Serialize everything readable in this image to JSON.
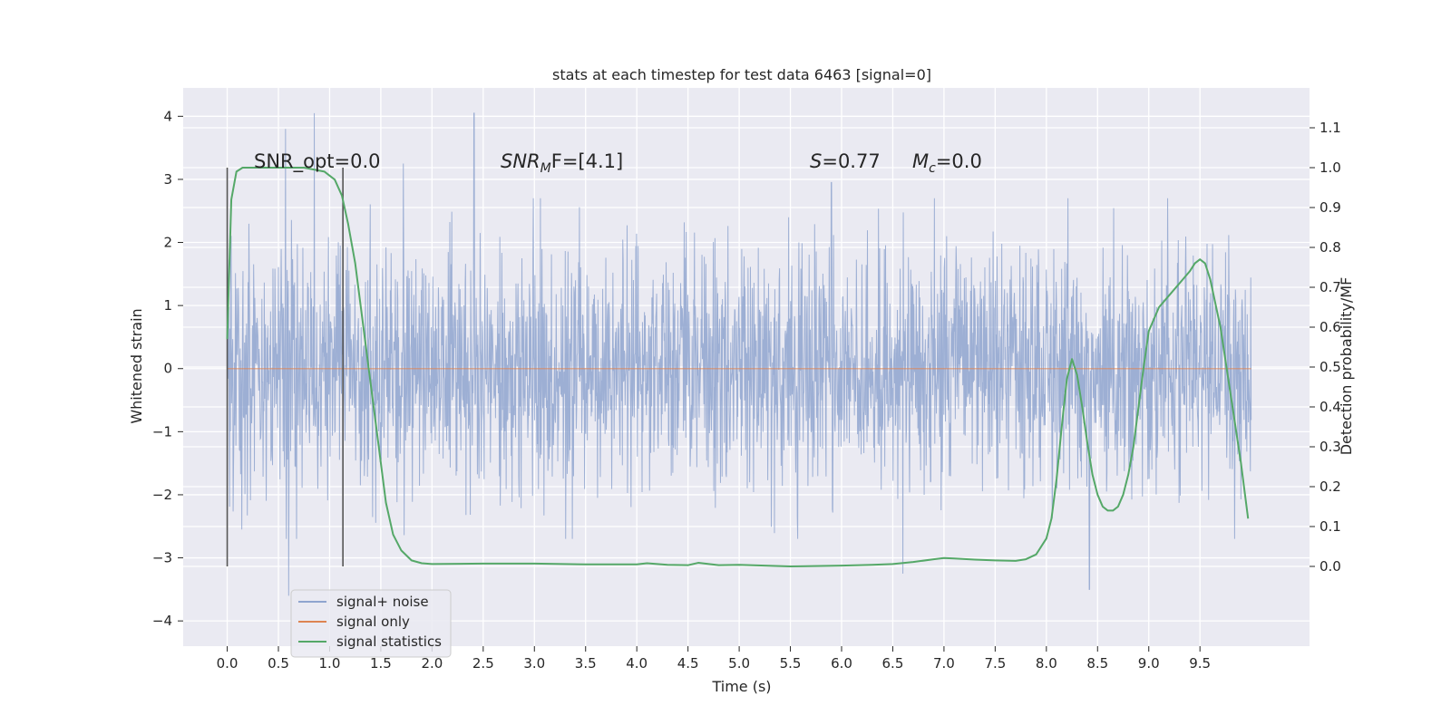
{
  "chart_data": {
    "type": "line",
    "title": "stats at each timestep for test data 6463 [signal=0]",
    "xlabel": "Time (s)",
    "ylabel_left": "Whitened strain",
    "ylabel_right": "Detection probability/MF",
    "xlim": [
      -0.43,
      10.57
    ],
    "ylim_left": [
      -4.4,
      4.45
    ],
    "ylim_right": [
      -0.2,
      1.2
    ],
    "x_ticks": [
      "0.0",
      "0.5",
      "1.0",
      "1.5",
      "2.0",
      "2.5",
      "3.0",
      "3.5",
      "4.0",
      "4.5",
      "5.0",
      "5.5",
      "6.0",
      "6.5",
      "7.0",
      "7.5",
      "8.0",
      "8.5",
      "9.0",
      "9.5"
    ],
    "y_ticks_left": [
      "−4",
      "−3",
      "−2",
      "−1",
      "0",
      "1",
      "2",
      "3",
      "4"
    ],
    "y_ticks_right": [
      "0.0",
      "0.1",
      "0.2",
      "0.3",
      "0.4",
      "0.5",
      "0.6",
      "0.7",
      "0.8",
      "0.9",
      "1.0",
      "1.1"
    ],
    "grid": true,
    "legend_position": "lower-left",
    "annotations": {
      "snr_opt": "SNR_opt=0.0",
      "snr_mf_label": "SNR",
      "snr_mf_sub": "M",
      "snr_mf_rest": "F=[4.1]",
      "s_label": "S",
      "s_value": "=0.77",
      "mc_label": "M",
      "mc_sub": "c",
      "mc_value": "=0.0"
    },
    "vertical_markers": [
      0.0,
      1.13
    ],
    "series": [
      {
        "name": "signal+ noise",
        "axis": "left",
        "color": "#8fa5cf",
        "style": "dense noise, approx. gaussian, range -3.6 to 4.05",
        "x_range": [
          0.0,
          10.0
        ],
        "notable_peaks": [
          [
            0.57,
            3.8
          ],
          [
            0.85,
            4.05
          ],
          [
            2.41,
            4.05
          ],
          [
            1.72,
            3.25
          ],
          [
            5.9,
            2.95
          ],
          [
            0.6,
            -3.6
          ],
          [
            8.42,
            -3.5
          ],
          [
            6.6,
            -3.25
          ]
        ]
      },
      {
        "name": "signal only",
        "axis": "left",
        "color": "#dd8452",
        "values_all_zero": true,
        "x_range": [
          0.0,
          10.0
        ]
      },
      {
        "name": "signal statistics",
        "axis": "right",
        "color": "#55a868",
        "x": [
          0.0,
          0.04,
          0.09,
          0.15,
          0.25,
          0.5,
          0.75,
          0.95,
          1.05,
          1.12,
          1.18,
          1.25,
          1.32,
          1.4,
          1.48,
          1.55,
          1.62,
          1.7,
          1.8,
          1.9,
          2.0,
          2.5,
          3.0,
          3.5,
          4.0,
          4.1,
          4.3,
          4.5,
          4.6,
          4.8,
          5.0,
          5.5,
          6.0,
          6.3,
          6.5,
          6.7,
          6.9,
          7.0,
          7.1,
          7.3,
          7.5,
          7.7,
          7.8,
          7.9,
          8.0,
          8.05,
          8.1,
          8.15,
          8.2,
          8.25,
          8.3,
          8.35,
          8.4,
          8.45,
          8.5,
          8.55,
          8.6,
          8.65,
          8.7,
          8.75,
          8.8,
          8.85,
          8.9,
          8.95,
          9.0,
          9.1,
          9.2,
          9.3,
          9.4,
          9.45,
          9.5,
          9.55,
          9.6,
          9.7,
          9.8,
          9.9,
          9.97
        ],
        "values": [
          0.57,
          0.92,
          0.99,
          1.0,
          1.0,
          1.0,
          1.0,
          0.99,
          0.97,
          0.93,
          0.86,
          0.76,
          0.62,
          0.46,
          0.3,
          0.16,
          0.08,
          0.04,
          0.015,
          0.008,
          0.006,
          0.007,
          0.007,
          0.005,
          0.005,
          0.008,
          0.004,
          0.003,
          0.009,
          0.003,
          0.004,
          0.0,
          0.002,
          0.004,
          0.006,
          0.011,
          0.018,
          0.021,
          0.02,
          0.017,
          0.015,
          0.014,
          0.018,
          0.03,
          0.07,
          0.12,
          0.22,
          0.35,
          0.47,
          0.52,
          0.48,
          0.4,
          0.31,
          0.23,
          0.18,
          0.15,
          0.14,
          0.14,
          0.15,
          0.18,
          0.23,
          0.3,
          0.4,
          0.5,
          0.59,
          0.65,
          0.68,
          0.71,
          0.74,
          0.76,
          0.77,
          0.76,
          0.72,
          0.6,
          0.43,
          0.26,
          0.12
        ]
      }
    ]
  },
  "legend": {
    "items": [
      {
        "label": "signal+ noise",
        "color": "#8fa5cf"
      },
      {
        "label": "signal only",
        "color": "#dd8452"
      },
      {
        "label": "signal statistics",
        "color": "#55a868"
      }
    ]
  },
  "colors": {
    "plot_bg": "#eaeaf2",
    "grid": "#ffffff",
    "text": "#262626",
    "marker_line": "#555555"
  }
}
